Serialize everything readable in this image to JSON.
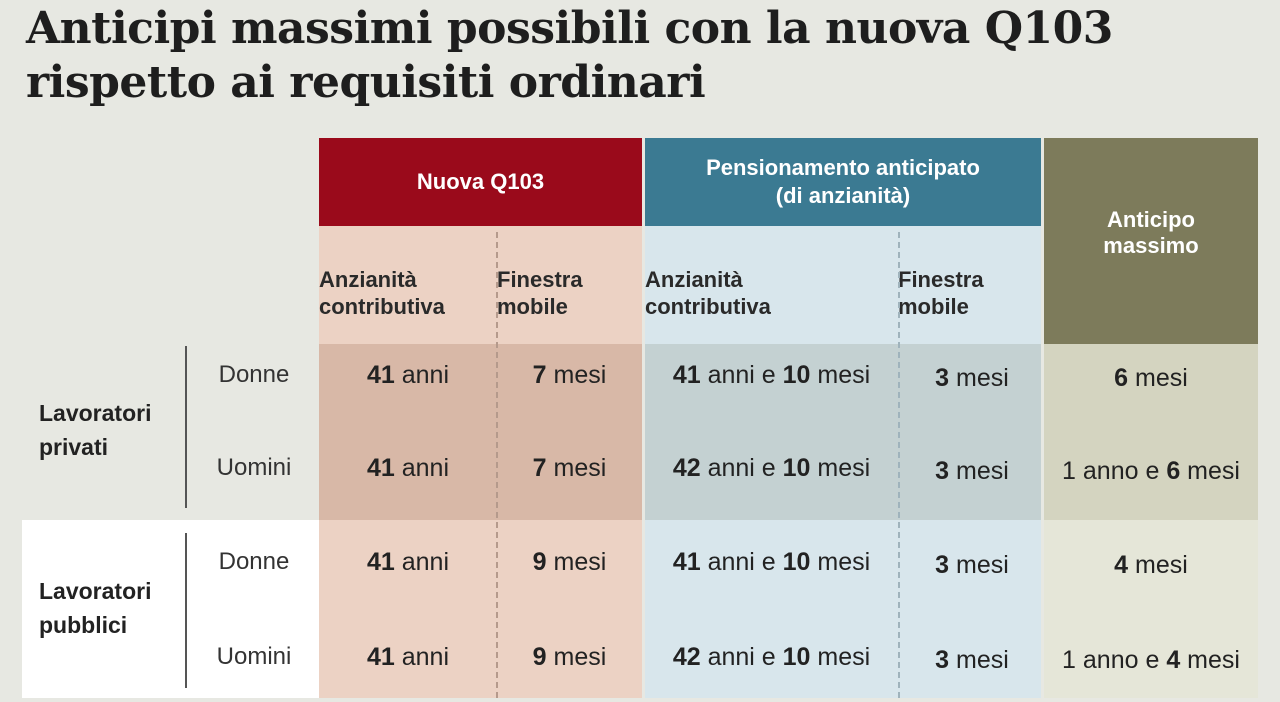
{
  "title": {
    "line1": "Anticipi massimi possibili con la nuova Q103",
    "line2": "rispetto ai requisiti ordinari"
  },
  "headers": {
    "q103": "Nuova Q103",
    "pensionamento_line1": "Pensionamento anticipato",
    "pensionamento_line2": "(di anzianità)",
    "anticipo_line1": "Anticipo",
    "anticipo_line2": "massimo",
    "anz_line1": "Anzianità",
    "anz_line2": "contributiva",
    "fin_line1": "Finestra",
    "fin_line2": "mobile"
  },
  "groups": {
    "privati_line1": "Lavoratori",
    "privati_line2": "privati",
    "pubblici_line1": "Lavoratori",
    "pubblici_line2": "pubblici"
  },
  "rows": [
    {
      "label": "Donne",
      "q_anz_num": "41",
      "q_anz_unit": " anni",
      "q_fin_num": "7",
      "q_fin_unit": " mesi",
      "p_anz_num1": "41",
      "p_anz_mid": " anni e ",
      "p_anz_num2": "10",
      "p_anz_unit": " mesi",
      "p_fin_num": "3",
      "p_fin_unit": " mesi",
      "a_pre": "",
      "a_num": "6",
      "a_unit": " mesi"
    },
    {
      "label": "Uomini",
      "q_anz_num": "41",
      "q_anz_unit": " anni",
      "q_fin_num": "7",
      "q_fin_unit": " mesi",
      "p_anz_num1": "42",
      "p_anz_mid": " anni e ",
      "p_anz_num2": "10",
      "p_anz_unit": " mesi",
      "p_fin_num": "3",
      "p_fin_unit": " mesi",
      "a_pre": "1 anno e ",
      "a_num": "6",
      "a_unit": " mesi"
    },
    {
      "label": "Donne",
      "q_anz_num": "41",
      "q_anz_unit": " anni",
      "q_fin_num": "9",
      "q_fin_unit": " mesi",
      "p_anz_num1": "41",
      "p_anz_mid": " anni e ",
      "p_anz_num2": "10",
      "p_anz_unit": " mesi",
      "p_fin_num": "3",
      "p_fin_unit": " mesi",
      "a_pre": "",
      "a_num": "4",
      "a_unit": " mesi"
    },
    {
      "label": "Uomini",
      "q_anz_num": "41",
      "q_anz_unit": " anni",
      "q_fin_num": "9",
      "q_fin_unit": " mesi",
      "p_anz_num1": "42",
      "p_anz_mid": " anni e ",
      "p_anz_num2": "10",
      "p_anz_unit": " mesi",
      "p_fin_num": "3",
      "p_fin_unit": " mesi",
      "a_pre": "1 anno e ",
      "a_num": "4",
      "a_unit": " mesi"
    }
  ]
}
